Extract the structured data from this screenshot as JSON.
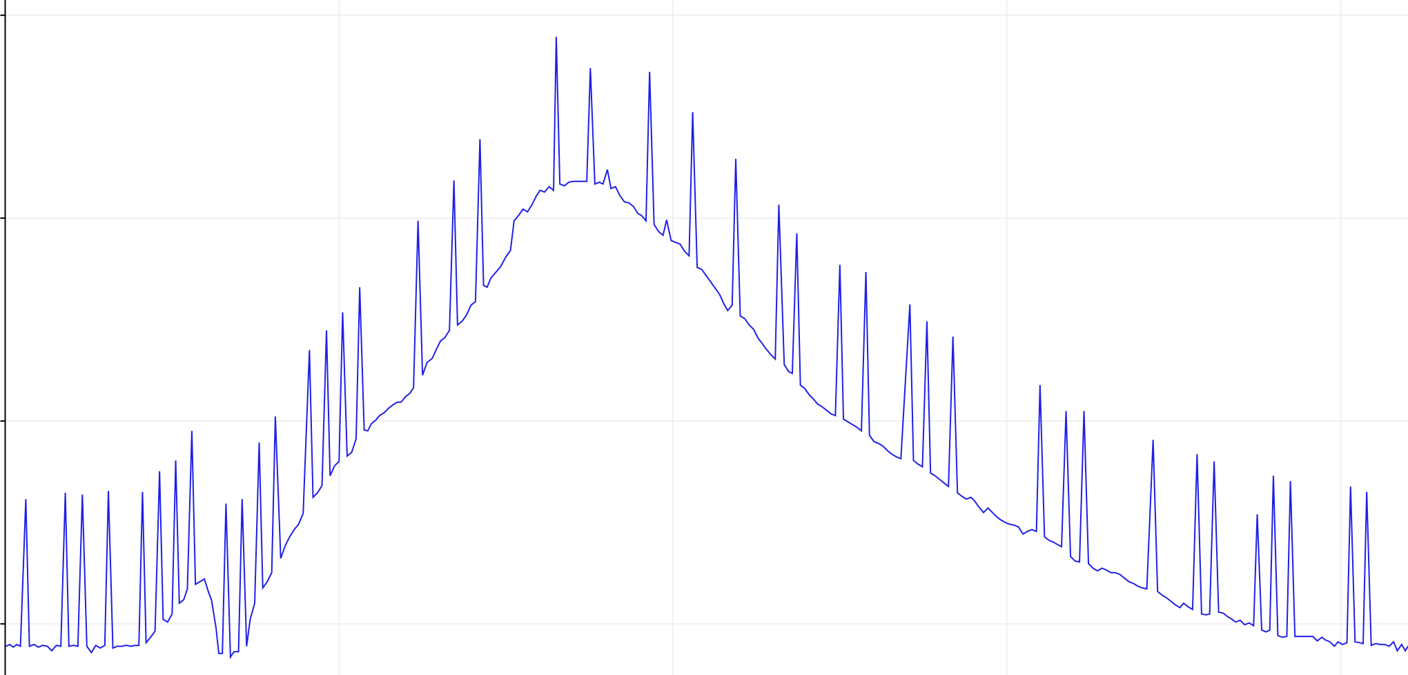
{
  "chart_data": {
    "type": "line",
    "x": [
      1,
      5,
      9,
      13,
      17,
      23,
      27,
      32,
      37,
      42,
      47,
      52,
      57,
      62,
      67,
      71,
      76,
      81,
      86,
      91,
      96,
      101,
      106,
      111,
      115,
      120,
      125,
      130,
      135,
      140,
      145,
      149,
      153,
      157,
      162,
      167,
      172,
      176,
      181,
      186,
      190,
      194,
      199,
      203,
      208,
      212,
      217,
      222,
      226,
      230,
      235,
      238,
      242,
      246,
      251,
      255,
      260,
      264,
      269,
      273,
      278,
      283,
      287,
      292,
      297,
      301,
      307,
      312,
      317,
      322,
      327,
      332,
      339,
      343,
      348,
      353,
      358,
      362,
      367,
      372,
      376,
      381,
      386,
      391,
      395,
      400,
      404,
      408,
      413,
      417,
      422,
      427,
      432,
      437,
      441,
      446,
      451,
      455,
      460,
      465,
      470,
      476,
      481,
      485,
      490,
      495,
      500,
      504,
      509,
      514,
      519,
      524,
      529,
      533,
      537,
      541,
      547,
      552,
      558,
      563,
      567,
      572,
      577,
      582,
      587,
      592,
      596,
      601,
      606,
      611,
      614,
      618,
      623,
      628,
      633,
      638,
      643,
      648,
      652,
      657,
      662,
      666,
      671,
      675,
      680,
      685,
      690,
      695,
      700,
      705,
      709,
      714,
      718,
      723,
      728,
      733,
      737,
      742,
      747,
      752,
      757,
      762,
      766,
      771,
      776,
      781,
      786,
      791,
      796,
      801,
      805,
      810,
      814,
      819,
      824,
      829,
      834,
      839,
      843,
      848,
      853,
      858,
      862,
      868,
      873,
      877,
      882,
      886,
      891,
      896,
      901,
      905,
      910,
      915,
      920,
      925,
      930,
      934,
      939,
      944,
      949,
      954,
      959,
      963,
      968,
      973,
      978,
      983,
      988,
      993,
      998,
      1008,
      1012,
      1017,
      1022,
      1027,
      1031,
      1036,
      1041,
      1046,
      1051,
      1056,
      1061,
      1066,
      1071,
      1076,
      1080,
      1085,
      1090,
      1095,
      1100,
      1105,
      1109,
      1114,
      1119,
      1124,
      1129,
      1134,
      1139,
      1144,
      1149,
      1153,
      1158,
      1163,
      1168,
      1173,
      1177,
      1182,
      1187,
      1192,
      1197,
      1202,
      1207,
      1212,
      1217,
      1222,
      1227,
      1232,
      1237,
      1242,
      1247,
      1252,
      1257,
      1262,
      1267,
      1272,
      1279,
      1284,
      1289,
      1294,
      1299,
      1304,
      1309,
      1313,
      1318,
      1323,
      1328,
      1333,
      1338,
      1342,
      1347,
      1352,
      1357,
      1362,
      1367,
      1371,
      1376,
      1381,
      1386,
      1391,
      1395,
      1400,
      1405,
      1409,
      1413,
      1418,
      1423,
      1428,
      1432,
      1437,
      1447,
      1457,
      1462,
      1467,
      1471,
      1476,
      1481,
      1485,
      1490,
      1495,
      1499,
      1504,
      1509,
      1513,
      1517,
      1522,
      1527,
      1532,
      1537,
      1542,
      1547,
      1551,
      1556,
      1560,
      1563
    ],
    "values": [
      -25,
      -23,
      -26,
      -23,
      -25,
      139,
      -25,
      -23,
      -26,
      -24,
      -25,
      -30,
      -24,
      -25,
      146,
      -25,
      -24,
      -25,
      144,
      -25,
      -32,
      -24,
      -27,
      -24,
      148,
      -27,
      -25,
      -25,
      -24,
      -25,
      -24,
      -24,
      147,
      -21,
      -15,
      -8,
      170,
      5,
      2,
      11,
      182,
      23,
      27,
      39,
      215,
      44,
      47,
      50,
      37,
      26,
      -5,
      -33,
      -33,
      134,
      -37,
      -31,
      -31,
      139,
      -25,
      5,
      23,
      202,
      40,
      47,
      57,
      231,
      73,
      87,
      97,
      105,
      111,
      123,
      305,
      141,
      146,
      154,
      327,
      165,
      176,
      181,
      347,
      187,
      191,
      206,
      375,
      216,
      215,
      223,
      227,
      232,
      235,
      240,
      244,
      247,
      247,
      253,
      257,
      263,
      449,
      277,
      291,
      296,
      307,
      315,
      319,
      327,
      494,
      333,
      337,
      344,
      355,
      359,
      540,
      377,
      375,
      385,
      392,
      398,
      409,
      416,
      449,
      455,
      462,
      459,
      467,
      477,
      483,
      481,
      487,
      483,
      654,
      490,
      488,
      492,
      493,
      493,
      493,
      493,
      619,
      490,
      492,
      490,
      506,
      485,
      487,
      477,
      470,
      469,
      465,
      457,
      455,
      449,
      615,
      445,
      437,
      433,
      450,
      427,
      425,
      423,
      415,
      410,
      570,
      397,
      395,
      388,
      381,
      374,
      367,
      356,
      349,
      355,
      518,
      343,
      340,
      333,
      328,
      318,
      313,
      306,
      300,
      295,
      467,
      289,
      281,
      279,
      435,
      266,
      262,
      255,
      250,
      245,
      242,
      238,
      234,
      232,
      400,
      228,
      225,
      222,
      219,
      215,
      392,
      210,
      203,
      201,
      198,
      193,
      189,
      186,
      184,
      356,
      182,
      178,
      175,
      337,
      168,
      165,
      161,
      157,
      153,
      320,
      146,
      142,
      139,
      141,
      137,
      130,
      124,
      129,
      124,
      119,
      116,
      113,
      111,
      110,
      108,
      100,
      103,
      105,
      103,
      266,
      97,
      93,
      91,
      88,
      86,
      237,
      75,
      70,
      69,
      237,
      67,
      62,
      59,
      62,
      60,
      57,
      57,
      55,
      51,
      47,
      45,
      42,
      40,
      39,
      205,
      36,
      32,
      29,
      25,
      21,
      18,
      23,
      19,
      16,
      189,
      11,
      10,
      11,
      181,
      13,
      12,
      8,
      5,
      2,
      4,
      -1,
      1,
      -2,
      122,
      -7,
      -9,
      -7,
      165,
      -13,
      -15,
      -14,
      159,
      -14,
      -14,
      -14,
      -19,
      -15,
      -18,
      -20,
      -25,
      -20,
      -23,
      -21,
      153,
      -20,
      -21,
      -22,
      147,
      -24,
      -22,
      -23,
      -23,
      -25,
      -20,
      -30,
      -23,
      -30,
      -25
    ],
    "color": "#1f1fe6",
    "xlim": [
      0,
      1563
    ],
    "xticks": [
      372,
      744,
      1116,
      1488
    ],
    "ylim": [
      -57,
      695
    ],
    "yticks": [
      0,
      226,
      452,
      678
    ],
    "grid": true
  }
}
